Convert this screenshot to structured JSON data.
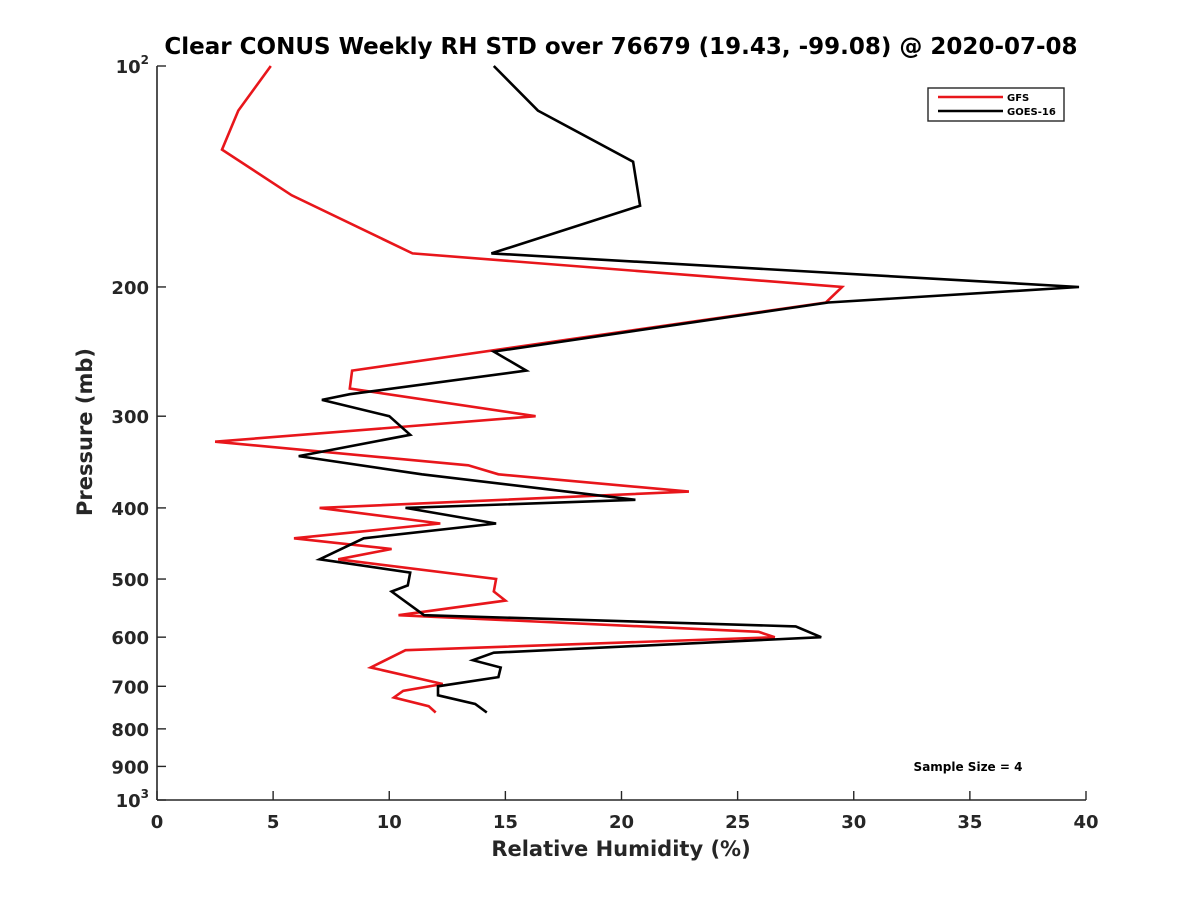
{
  "chart_data": {
    "type": "line",
    "title": "Clear CONUS Weekly RH STD over 76679 (19.43, -99.08) @ 2020-07-08",
    "xlabel": "Relative Humidity (%)",
    "ylabel": "Pressure (mb)",
    "xlim": [
      0,
      40
    ],
    "ylim": [
      100,
      1000
    ],
    "y_scale": "log",
    "y_reversed": true,
    "grid": false,
    "legend_position": "top-right",
    "annotation": "Sample Size = 4",
    "x_ticks": [
      "0",
      "5",
      "10",
      "15",
      "20",
      "25",
      "30",
      "35",
      "40"
    ],
    "y_ticks": [
      {
        "value": 100,
        "base": "10",
        "exp": "2"
      },
      {
        "value": 200,
        "label": "200"
      },
      {
        "value": 300,
        "label": "300"
      },
      {
        "value": 400,
        "label": "400"
      },
      {
        "value": 500,
        "label": "500"
      },
      {
        "value": 600,
        "label": "600"
      },
      {
        "value": 700,
        "label": "700"
      },
      {
        "value": 800,
        "label": "800"
      },
      {
        "value": 900,
        "label": "900"
      },
      {
        "value": 1000,
        "base": "10",
        "exp": "3"
      }
    ],
    "series": [
      {
        "name": "GFS",
        "color": "#e8161b",
        "points": [
          [
            4.9,
            100
          ],
          [
            3.5,
            115
          ],
          [
            2.8,
            130
          ],
          [
            5.8,
            150
          ],
          [
            11.0,
            180
          ],
          [
            29.5,
            200
          ],
          [
            28.8,
            210
          ],
          [
            8.4,
            260
          ],
          [
            8.3,
            275
          ],
          [
            16.3,
            300
          ],
          [
            2.5,
            325
          ],
          [
            13.4,
            350
          ],
          [
            14.7,
            360
          ],
          [
            22.9,
            380
          ],
          [
            7.0,
            400
          ],
          [
            12.2,
            420
          ],
          [
            5.9,
            440
          ],
          [
            10.1,
            455
          ],
          [
            7.8,
            470
          ],
          [
            14.6,
            500
          ],
          [
            14.5,
            520
          ],
          [
            15.0,
            535
          ],
          [
            10.4,
            560
          ],
          [
            25.9,
            590
          ],
          [
            26.6,
            600
          ],
          [
            10.7,
            625
          ],
          [
            9.2,
            660
          ],
          [
            12.3,
            695
          ],
          [
            10.6,
            710
          ],
          [
            10.2,
            725
          ],
          [
            11.7,
            745
          ],
          [
            12.0,
            760
          ]
        ]
      },
      {
        "name": "GOES-16",
        "color": "#000000",
        "points": [
          [
            14.5,
            100
          ],
          [
            16.4,
            115
          ],
          [
            20.5,
            135
          ],
          [
            20.8,
            155
          ],
          [
            14.4,
            180
          ],
          [
            39.7,
            200
          ],
          [
            28.9,
            210
          ],
          [
            14.5,
            245
          ],
          [
            15.9,
            260
          ],
          [
            8.3,
            280
          ],
          [
            7.1,
            285
          ],
          [
            10.0,
            300
          ],
          [
            10.9,
            318
          ],
          [
            6.1,
            340
          ],
          [
            11.4,
            360
          ],
          [
            20.6,
            390
          ],
          [
            10.7,
            400
          ],
          [
            14.6,
            420
          ],
          [
            8.9,
            440
          ],
          [
            7.0,
            470
          ],
          [
            10.9,
            490
          ],
          [
            10.8,
            510
          ],
          [
            10.1,
            520
          ],
          [
            11.5,
            560
          ],
          [
            27.5,
            580
          ],
          [
            28.6,
            600
          ],
          [
            14.5,
            630
          ],
          [
            13.6,
            645
          ],
          [
            14.8,
            660
          ],
          [
            14.7,
            680
          ],
          [
            12.1,
            700
          ],
          [
            12.1,
            720
          ],
          [
            13.7,
            740
          ],
          [
            14.2,
            760
          ]
        ]
      }
    ]
  }
}
